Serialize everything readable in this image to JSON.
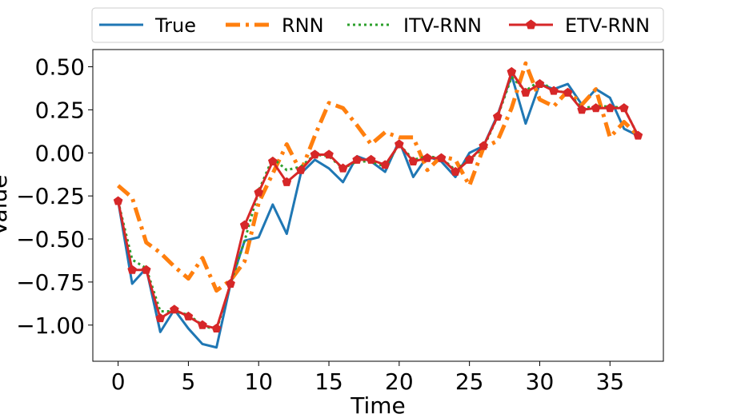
{
  "chart_data": {
    "type": "line",
    "xlabel": "Time",
    "ylabel": "Value",
    "xlim": [
      -1.8,
      38.8
    ],
    "ylim": [
      -1.21,
      0.6
    ],
    "xticks": [
      0,
      5,
      10,
      15,
      20,
      25,
      30,
      35
    ],
    "yticks": [
      0.5,
      0.25,
      0.0,
      -0.25,
      -0.5,
      -0.75,
      -1.0
    ],
    "ytick_labels": [
      "0.50",
      "0.25",
      "0.00",
      "−0.25",
      "−0.50",
      "−0.75",
      "−1.00"
    ],
    "grid": false,
    "legend_position": "top",
    "x": [
      0,
      1,
      2,
      3,
      4,
      5,
      6,
      7,
      8,
      9,
      10,
      11,
      12,
      13,
      14,
      15,
      16,
      17,
      18,
      19,
      20,
      21,
      22,
      23,
      24,
      25,
      26,
      27,
      28,
      29,
      30,
      31,
      32,
      33,
      34,
      35,
      36,
      37
    ],
    "series": [
      {
        "name": "True",
        "color": "#1f77b4",
        "style": "solid",
        "values": [
          -0.28,
          -0.76,
          -0.67,
          -1.04,
          -0.91,
          -1.02,
          -1.11,
          -1.13,
          -0.76,
          -0.51,
          -0.49,
          -0.3,
          -0.47,
          -0.12,
          -0.04,
          -0.09,
          -0.17,
          -0.02,
          -0.05,
          -0.11,
          0.07,
          -0.14,
          -0.02,
          -0.05,
          -0.14,
          0.0,
          0.04,
          0.22,
          0.45,
          0.17,
          0.4,
          0.37,
          0.4,
          0.28,
          0.37,
          0.32,
          0.14,
          0.1
        ]
      },
      {
        "name": "RNN",
        "color": "#ff7f0e",
        "style": "dashdot",
        "values": [
          -0.19,
          -0.26,
          -0.52,
          -0.58,
          -0.66,
          -0.73,
          -0.61,
          -0.8,
          -0.74,
          -0.63,
          -0.29,
          -0.12,
          0.05,
          -0.11,
          0.1,
          0.29,
          0.26,
          0.16,
          0.05,
          0.12,
          0.09,
          0.09,
          -0.1,
          -0.02,
          -0.04,
          -0.19,
          0.03,
          0.07,
          0.26,
          0.52,
          0.31,
          0.27,
          0.36,
          0.28,
          0.37,
          0.09,
          0.18,
          0.1
        ]
      },
      {
        "name": "ITV-RNN",
        "color": "#2ca02c",
        "style": "dotted",
        "values": [
          -0.28,
          -0.62,
          -0.67,
          -0.92,
          -0.92,
          -0.94,
          -1.0,
          -1.03,
          -0.76,
          -0.51,
          -0.22,
          -0.03,
          -0.1,
          -0.08,
          -0.01,
          -0.02,
          -0.09,
          -0.05,
          -0.05,
          -0.08,
          0.05,
          -0.04,
          -0.02,
          -0.03,
          -0.1,
          -0.04,
          0.03,
          0.21,
          0.44,
          0.36,
          0.42,
          0.36,
          0.35,
          0.26,
          0.27,
          0.27,
          0.26,
          0.1
        ]
      },
      {
        "name": "ETV-RNN",
        "color": "#d62728",
        "style": "solid",
        "marker": "pentagon",
        "values": [
          -0.28,
          -0.68,
          -0.68,
          -0.96,
          -0.91,
          -0.95,
          -1.0,
          -1.02,
          -0.76,
          -0.42,
          -0.23,
          -0.05,
          -0.17,
          -0.1,
          -0.01,
          -0.01,
          -0.09,
          -0.04,
          -0.04,
          -0.07,
          0.05,
          -0.05,
          -0.03,
          -0.03,
          -0.11,
          -0.04,
          0.04,
          0.21,
          0.47,
          0.35,
          0.4,
          0.36,
          0.35,
          0.25,
          0.26,
          0.26,
          0.26,
          0.1
        ]
      }
    ]
  }
}
